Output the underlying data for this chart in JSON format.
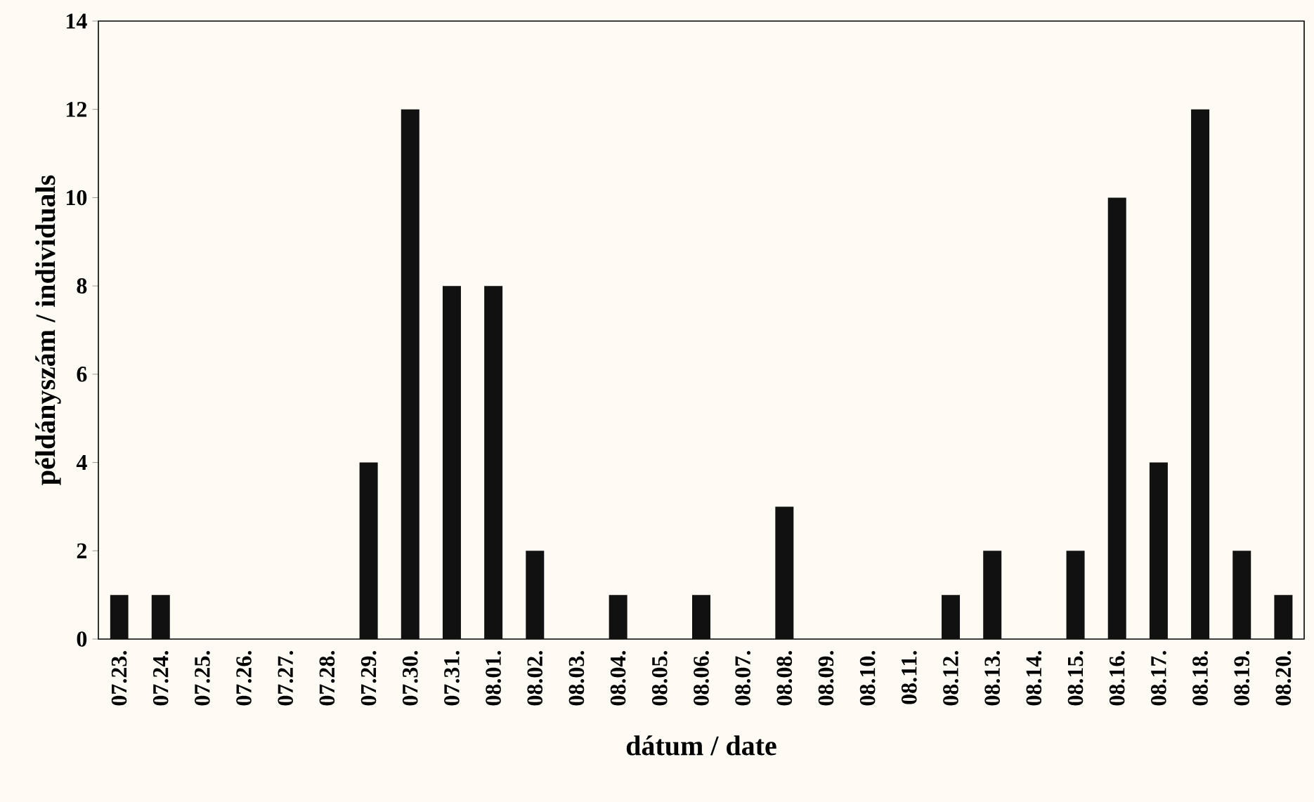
{
  "chart_data": {
    "type": "bar",
    "xlabel": "dátum / date",
    "ylabel": "példányszám / individuals",
    "categories": [
      "07.23.",
      "07.24.",
      "07.25.",
      "07.26.",
      "07.27.",
      "07.28.",
      "07.29.",
      "07.30.",
      "07.31.",
      "08.01.",
      "08.02.",
      "08.03.",
      "08.04.",
      "08.05.",
      "08.06.",
      "08.07.",
      "08.08.",
      "08.09.",
      "08.10.",
      "08.11.",
      "08.12.",
      "08.13.",
      "08.14.",
      "08.15.",
      "08.16.",
      "08.17.",
      "08.18.",
      "08.19.",
      "08.20."
    ],
    "values": [
      1,
      1,
      0,
      0,
      0,
      0,
      4,
      12,
      8,
      8,
      2,
      0,
      1,
      0,
      1,
      0,
      3,
      0,
      0,
      0,
      1,
      2,
      0,
      2,
      10,
      4,
      12,
      2,
      1
    ],
    "color": "#111111",
    "ylim": [
      0,
      14
    ],
    "yticks": [
      0,
      2,
      4,
      6,
      8,
      10,
      12,
      14
    ],
    "grid": false
  }
}
